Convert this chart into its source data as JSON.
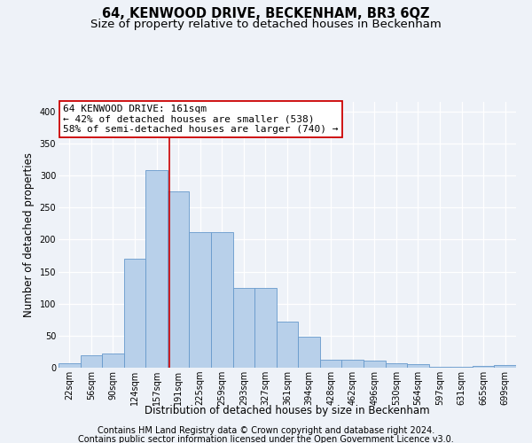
{
  "title": "64, KENWOOD DRIVE, BECKENHAM, BR3 6QZ",
  "subtitle": "Size of property relative to detached houses in Beckenham",
  "xlabel": "Distribution of detached houses by size in Beckenham",
  "ylabel": "Number of detached properties",
  "bar_color": "#b8d0ea",
  "bar_edge_color": "#6699cc",
  "bin_labels": [
    "22sqm",
    "56sqm",
    "90sqm",
    "124sqm",
    "157sqm",
    "191sqm",
    "225sqm",
    "259sqm",
    "293sqm",
    "327sqm",
    "361sqm",
    "394sqm",
    "428sqm",
    "462sqm",
    "496sqm",
    "530sqm",
    "564sqm",
    "597sqm",
    "631sqm",
    "665sqm",
    "699sqm"
  ],
  "bar_heights": [
    7,
    20,
    22,
    170,
    308,
    275,
    212,
    212,
    125,
    125,
    72,
    48,
    13,
    13,
    11,
    7,
    5,
    2,
    1,
    3,
    4
  ],
  "ylim": [
    0,
    415
  ],
  "yticks": [
    0,
    50,
    100,
    150,
    200,
    250,
    300,
    350,
    400
  ],
  "annotation_line1": "64 KENWOOD DRIVE: 161sqm",
  "annotation_line2": "← 42% of detached houses are smaller (538)",
  "annotation_line3": "58% of semi-detached houses are larger (740) →",
  "vline_x_index": 4.6,
  "vline_color": "#cc0000",
  "annotation_box_color": "#ffffff",
  "annotation_box_edgecolor": "#cc0000",
  "footer1": "Contains HM Land Registry data © Crown copyright and database right 2024.",
  "footer2": "Contains public sector information licensed under the Open Government Licence v3.0.",
  "background_color": "#eef2f8",
  "grid_color": "#ffffff",
  "title_fontsize": 10.5,
  "subtitle_fontsize": 9.5,
  "tick_fontsize": 7,
  "ylabel_fontsize": 8.5,
  "xlabel_fontsize": 8.5,
  "annotation_fontsize": 8,
  "footer_fontsize": 7
}
